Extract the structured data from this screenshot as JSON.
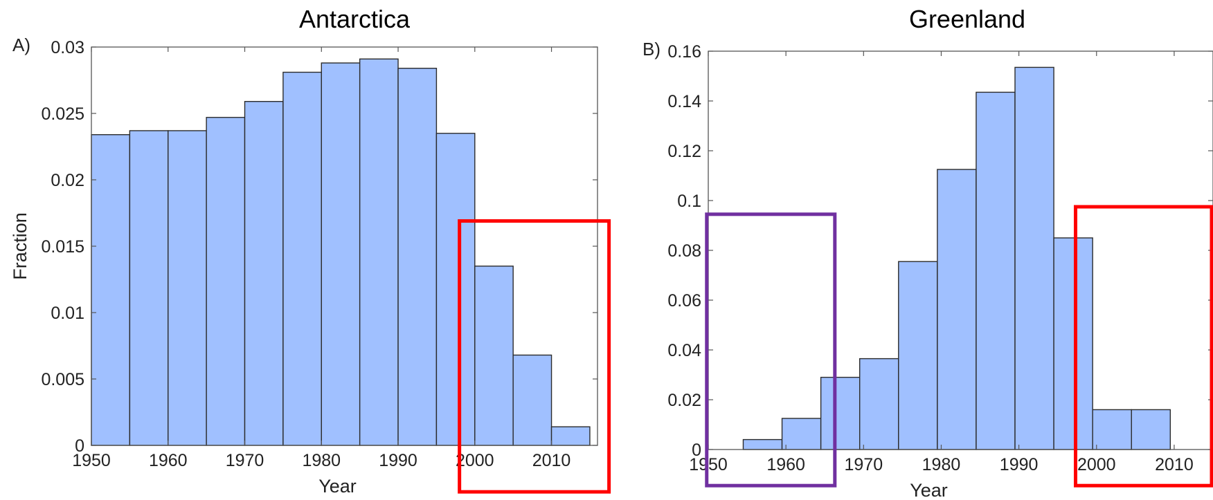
{
  "chart_data": [
    {
      "type": "bar",
      "title": "Antarctica",
      "panel_label": "A)",
      "xlabel": "Year",
      "ylabel": "Fraction",
      "bin_width": 5,
      "bin_starts": [
        1950,
        1955,
        1960,
        1965,
        1970,
        1975,
        1980,
        1985,
        1990,
        1995,
        2000,
        2005,
        2010
      ],
      "values": [
        0.0234,
        0.0237,
        0.0237,
        0.0247,
        0.0259,
        0.0281,
        0.0288,
        0.0291,
        0.0284,
        0.0235,
        0.0135,
        0.0068,
        0.0014
      ],
      "xlim": [
        1950,
        2016
      ],
      "ylim": [
        0,
        0.03
      ],
      "xticks": [
        1950,
        1960,
        1970,
        1980,
        1990,
        2000,
        2010
      ],
      "yticks": [
        0,
        0.005,
        0.01,
        0.015,
        0.02,
        0.025,
        0.03
      ],
      "ytick_labels": [
        "0",
        "0.005",
        "0.01",
        "0.015",
        "0.02",
        "0.025",
        "0.03"
      ],
      "bar_color": "#a0c0ff",
      "highlight_boxes": [
        {
          "color": "#ff0000",
          "x_range": [
            1998,
            2017.5
          ],
          "y_range": [
            -0.0035,
            0.0169
          ]
        }
      ]
    },
    {
      "type": "bar",
      "title": "Greenland",
      "panel_label": "B)",
      "xlabel": "Year",
      "ylabel": "",
      "bin_width": 5,
      "bin_starts": [
        1954.5,
        1959.5,
        1964.5,
        1969.5,
        1974.5,
        1979.5,
        1984.5,
        1989.5,
        1994.5,
        1999.5,
        2004.5
      ],
      "values": [
        0.004,
        0.0125,
        0.029,
        0.0365,
        0.0755,
        0.1125,
        0.1435,
        0.1535,
        0.085,
        0.016,
        0.016
      ],
      "xlim": [
        1950,
        2015
      ],
      "ylim": [
        0,
        0.16
      ],
      "xticks": [
        1950,
        1960,
        1970,
        1980,
        1990,
        2000,
        2010
      ],
      "yticks": [
        0,
        0.02,
        0.04,
        0.06,
        0.08,
        0.1,
        0.12,
        0.14,
        0.16
      ],
      "ytick_labels": [
        "0",
        "0.02",
        "0.04",
        "0.06",
        "0.08",
        "0.1",
        "0.12",
        "0.14",
        "0.16"
      ],
      "bar_color": "#a0c0ff",
      "highlight_boxes": [
        {
          "color": "#7030a0",
          "x_range": [
            1949.8,
            1966.3
          ],
          "y_range": [
            -0.0145,
            0.0945
          ]
        },
        {
          "color": "#ff0000",
          "x_range": [
            1997.3,
            2017
          ],
          "y_range": [
            -0.0145,
            0.0975
          ]
        }
      ]
    }
  ]
}
